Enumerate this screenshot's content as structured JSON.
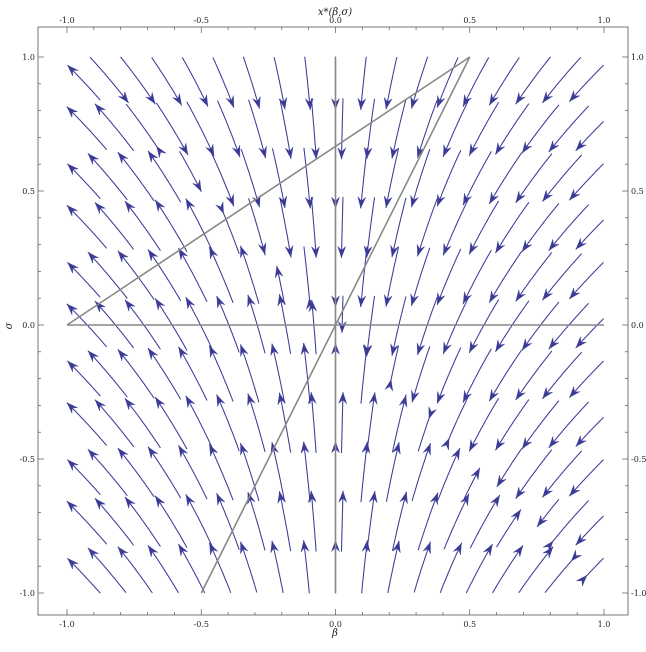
{
  "chart_data": {
    "type": "streamplot",
    "title": "x*(β,σ)",
    "xlabel": "β",
    "ylabel": "σ",
    "xlim": [
      -1.0,
      1.0
    ],
    "ylim": [
      -1.0,
      1.0
    ],
    "x_ticks": [
      "-1.0",
      "-0.5",
      "0.0",
      "0.5",
      "1.0"
    ],
    "y_ticks": [
      "-1.0",
      "-0.5",
      "0.0",
      "0.5",
      "1.0"
    ],
    "y_ticks_right": [
      "-1.0",
      "-0.5",
      "0.0",
      "0.5",
      "1.0"
    ],
    "y_ticks_right_clipped_bottom": "-1.0",
    "grid": false,
    "stream_color": "#3b3b96",
    "reference_color": "#888888",
    "reference_lines": [
      {
        "name": "beta-axis",
        "points": [
          [
            -1.0,
            0.0
          ],
          [
            1.0,
            0.0
          ]
        ]
      },
      {
        "name": "sigma-axis",
        "points": [
          [
            0.0,
            -1.0
          ],
          [
            0.0,
            1.0
          ]
        ]
      },
      {
        "name": "upper-boundary",
        "points": [
          [
            -1.0,
            0.0
          ],
          [
            0.5,
            1.0
          ]
        ]
      },
      {
        "name": "steep-boundary",
        "points": [
          [
            -0.5,
            -1.0
          ],
          [
            0.5,
            1.0
          ]
        ]
      }
    ],
    "stream_field": "dβ = -β(β+σ), dσ = -(β+σ)"
  }
}
